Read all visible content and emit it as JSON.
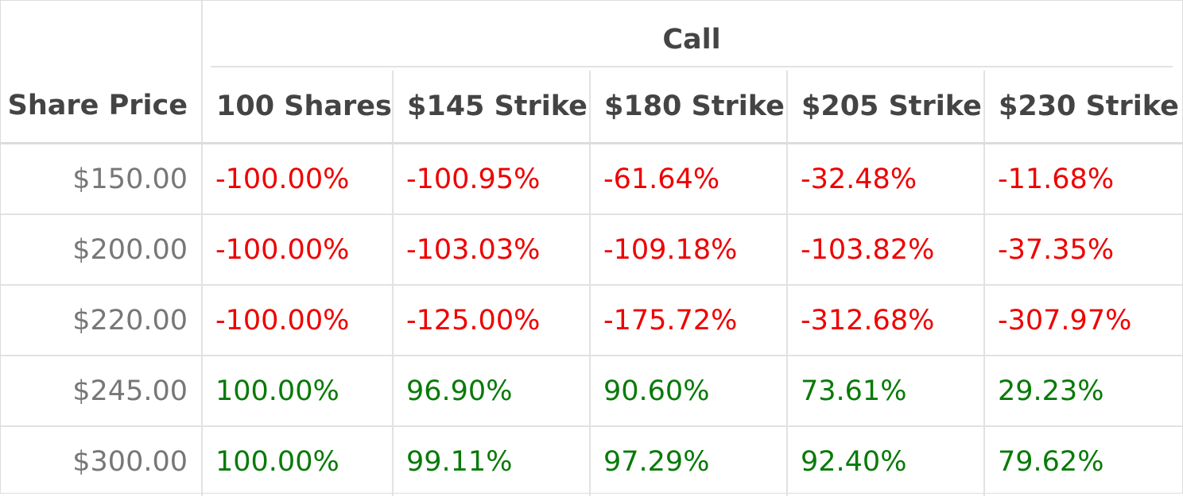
{
  "table": {
    "row_header_label": "Share Price",
    "group_label": "Call",
    "columns": [
      "100 Shares",
      "$145 Strike",
      "$180 Strike",
      "$205 Strike",
      "$230 Strike"
    ],
    "rows": [
      {
        "price": "$150.00",
        "values": [
          "-100.00%",
          "-100.95%",
          "-61.64%",
          "-32.48%",
          "-11.68%"
        ],
        "sign": [
          "neg",
          "neg",
          "neg",
          "neg",
          "neg"
        ]
      },
      {
        "price": "$200.00",
        "values": [
          "-100.00%",
          "-103.03%",
          "-109.18%",
          "-103.82%",
          "-37.35%"
        ],
        "sign": [
          "neg",
          "neg",
          "neg",
          "neg",
          "neg"
        ]
      },
      {
        "price": "$220.00",
        "values": [
          "-100.00%",
          "-125.00%",
          "-175.72%",
          "-312.68%",
          "-307.97%"
        ],
        "sign": [
          "neg",
          "neg",
          "neg",
          "neg",
          "neg"
        ]
      },
      {
        "price": "$245.00",
        "values": [
          "100.00%",
          "96.90%",
          "90.60%",
          "73.61%",
          "29.23%"
        ],
        "sign": [
          "pos",
          "pos",
          "pos",
          "pos",
          "pos"
        ]
      },
      {
        "price": "$300.00",
        "values": [
          "100.00%",
          "99.11%",
          "97.29%",
          "92.40%",
          "79.62%"
        ],
        "sign": [
          "pos",
          "pos",
          "pos",
          "pos",
          "pos"
        ]
      }
    ],
    "colors": {
      "negative": "#ee0000",
      "positive": "#087a08",
      "header_text": "#444444",
      "price_text": "#777777",
      "grid": "#e2e2e2"
    }
  }
}
